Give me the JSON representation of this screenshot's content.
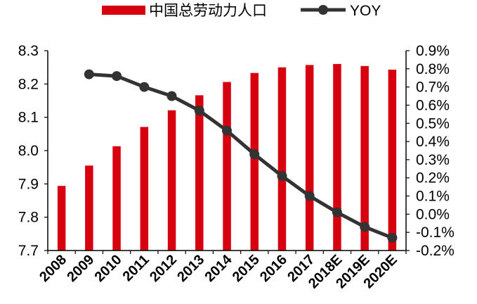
{
  "chart_data": {
    "type": "bar+line",
    "categories": [
      "2008",
      "2009",
      "2010",
      "2011",
      "2012",
      "2013",
      "2014",
      "2015",
      "2016",
      "2017",
      "2018E",
      "2019E",
      "2020E"
    ],
    "series": [
      {
        "name": "中国总劳动力人口",
        "type": "bar",
        "axis": "left",
        "color": "#d7000f",
        "values": [
          7.894,
          7.955,
          8.013,
          8.071,
          8.121,
          8.166,
          8.206,
          8.233,
          8.25,
          8.257,
          8.26,
          8.254,
          8.243
        ]
      },
      {
        "name": "YOY",
        "type": "line",
        "axis": "right",
        "color": "#333333",
        "values": [
          null,
          0.77,
          0.76,
          0.7,
          0.65,
          0.57,
          0.46,
          0.33,
          0.21,
          0.1,
          0.01,
          -0.07,
          -0.13
        ]
      }
    ],
    "y_left": {
      "min": 7.7,
      "max": 8.3,
      "ticks": [
        "7.7",
        "7.8",
        "7.9",
        "8.0",
        "8.1",
        "8.2",
        "8.3"
      ]
    },
    "y_right": {
      "min": -0.2,
      "max": 0.9,
      "unit": "%",
      "ticks": [
        "-0.2%",
        "-0.1%",
        "0.0%",
        "0.1%",
        "0.2%",
        "0.3%",
        "0.4%",
        "0.5%",
        "0.6%",
        "0.7%",
        "0.8%",
        "0.9%"
      ]
    },
    "legend": {
      "position": "top",
      "items": [
        {
          "label": "中国总劳动力人口",
          "icon": "bar"
        },
        {
          "label": "YOY",
          "icon": "line-marker"
        }
      ]
    },
    "grid": false
  }
}
